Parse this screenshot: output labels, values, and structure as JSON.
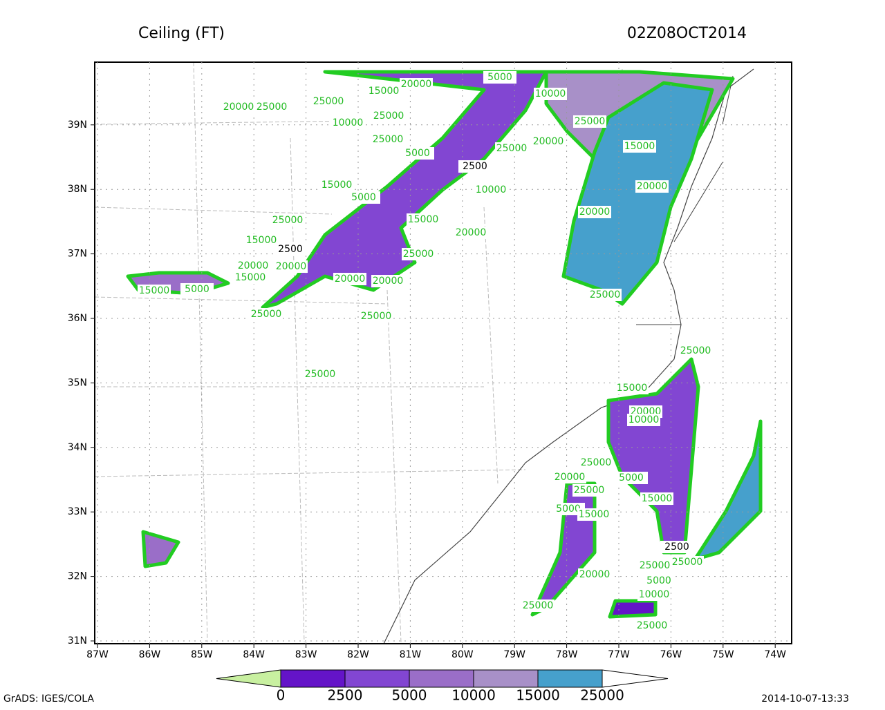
{
  "header": {
    "title": "Ceiling (FT)",
    "time": "02Z08OCT2014"
  },
  "map": {
    "lon_ticks": [
      "87W",
      "86W",
      "85W",
      "84W",
      "83W",
      "82W",
      "81W",
      "80W",
      "79W",
      "78W",
      "77W",
      "76W",
      "75W",
      "74W"
    ],
    "lat_ticks": [
      "31N",
      "32N",
      "33N",
      "34N",
      "35N",
      "36N",
      "37N",
      "38N",
      "39N"
    ],
    "contour_labels": [
      "5000",
      "15000",
      "20000",
      "10000",
      "20000",
      "25000",
      "25000",
      "10000",
      "25000",
      "25000",
      "15000",
      "25000",
      "5000",
      "2500",
      "25000",
      "20000",
      "20000",
      "15000",
      "10000",
      "5000",
      "20000",
      "25000",
      "15000",
      "20000",
      "15000",
      "2500",
      "25000",
      "20000",
      "20000",
      "15000",
      "20000",
      "20000",
      "15000",
      "5000",
      "25000",
      "25000",
      "25000",
      "25000",
      "25000",
      "15000",
      "20000",
      "10000",
      "25000",
      "5000",
      "20000",
      "25000",
      "15000",
      "5000",
      "15000",
      "2500",
      "25000",
      "25000",
      "5000",
      "20000",
      "10000",
      "25000",
      "25000"
    ]
  },
  "colorbar": {
    "levels": [
      0,
      2500,
      5000,
      10000,
      15000,
      25000
    ],
    "colors": [
      "#c8f0a0",
      "#6414c8",
      "#8246d2",
      "#9a6ec8",
      "#a890c8",
      "#46a0cc",
      "#ffffff"
    ]
  },
  "footer": {
    "left": "GrADS: IGES/COLA",
    "right": "2014-10-07-13:33"
  }
}
